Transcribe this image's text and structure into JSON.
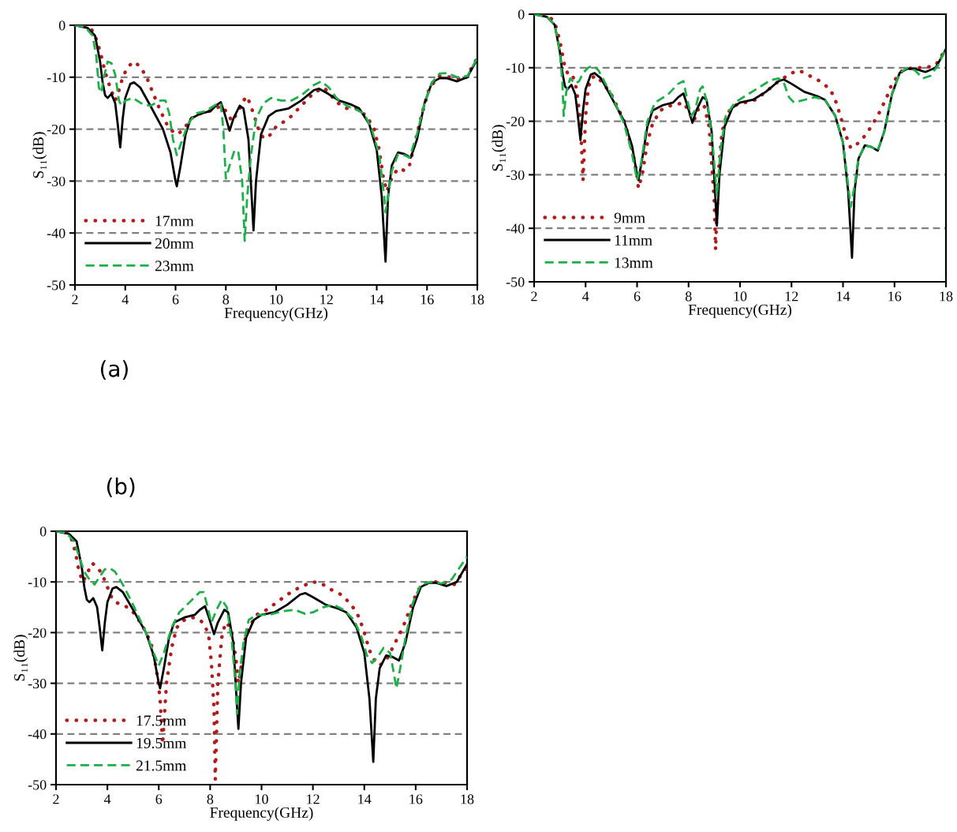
{
  "chart_data": [
    {
      "type": "line",
      "xlabel": "Frequency(GHz)",
      "ylabel": "S₁₁(dB)",
      "xlim": [
        2,
        18
      ],
      "ylim": [
        -50,
        0
      ],
      "xticks": [
        2,
        4,
        6,
        8,
        10,
        12,
        14,
        16,
        18
      ],
      "yticks": [
        -50,
        -40,
        -30,
        -20,
        -10,
        0
      ],
      "grid": "y",
      "legend": "bottom left",
      "annotations": [
        "(a)"
      ],
      "series": [
        {
          "name": "17mm",
          "color": "#b01c1c",
          "line_style": "dotted",
          "x": [
            2.0,
            2.6,
            2.8,
            3.0,
            3.2,
            3.4,
            3.6,
            3.75,
            3.9,
            4.1,
            4.35,
            4.6,
            4.85,
            5.1,
            5.4,
            5.7,
            5.9,
            6.1,
            6.4,
            6.6,
            7.0,
            7.5,
            7.8,
            8.0,
            8.25,
            8.5,
            8.7,
            8.85,
            9.1,
            9.3,
            9.5,
            9.8,
            10.0,
            10.5,
            11.0,
            11.5,
            11.9,
            12.1,
            12.4,
            12.8,
            13.2,
            13.6,
            13.9,
            14.1,
            14.25,
            14.4,
            14.55,
            14.7,
            14.9,
            15.1,
            15.3,
            15.5,
            15.8,
            16.1,
            16.5,
            17.0,
            17.5,
            18.0
          ],
          "values": [
            0,
            -0.3,
            -2,
            -5,
            -9,
            -12,
            -14.5,
            -12.5,
            -10,
            -8,
            -7,
            -8,
            -10,
            -13,
            -16.5,
            -19.5,
            -20.5,
            -21,
            -19.5,
            -18,
            -17,
            -16.3,
            -15.5,
            -16.5,
            -18.5,
            -16.5,
            -14.5,
            -13.7,
            -17,
            -20,
            -21.8,
            -21,
            -19.5,
            -18,
            -15.5,
            -13,
            -12,
            -13,
            -14.8,
            -16,
            -16,
            -17.5,
            -20,
            -24,
            -29,
            -32,
            -30,
            -28.5,
            -27.5,
            -28,
            -27,
            -23,
            -17,
            -12,
            -9.8,
            -10,
            -10.5,
            -6.3
          ]
        },
        {
          "name": "20mm",
          "color": "#000000",
          "line_style": "solid",
          "x": [
            2.0,
            2.5,
            2.8,
            3.0,
            3.1,
            3.2,
            3.3,
            3.45,
            3.6,
            3.7,
            3.8,
            3.9,
            4.0,
            4.2,
            4.35,
            4.6,
            5.0,
            5.5,
            5.8,
            6.0,
            6.05,
            6.2,
            6.4,
            6.6,
            7.0,
            7.4,
            7.6,
            7.8,
            7.95,
            8.15,
            8.3,
            8.55,
            8.7,
            8.9,
            9.05,
            9.1,
            9.2,
            9.4,
            9.7,
            10.0,
            10.5,
            11.0,
            11.5,
            11.7,
            12.0,
            12.5,
            13.0,
            13.3,
            13.7,
            14.0,
            14.2,
            14.35,
            14.45,
            14.6,
            14.85,
            15.1,
            15.35,
            15.6,
            15.9,
            16.2,
            16.5,
            16.8,
            17.2,
            17.6,
            18.0
          ],
          "values": [
            0,
            -0.5,
            -2,
            -7,
            -11,
            -13.5,
            -14,
            -13.2,
            -15,
            -19,
            -23.5,
            -18,
            -14,
            -11.3,
            -11,
            -12,
            -15.5,
            -20,
            -24.5,
            -30,
            -31,
            -27,
            -21,
            -18,
            -17,
            -16.5,
            -15.5,
            -14.8,
            -17,
            -20.3,
            -18,
            -15.5,
            -16,
            -22,
            -35,
            -39.5,
            -30,
            -21,
            -17.5,
            -16.5,
            -16,
            -14.5,
            -12.5,
            -12.2,
            -13,
            -14.5,
            -15.3,
            -16,
            -19,
            -24,
            -33,
            -45.5,
            -33,
            -27,
            -24.5,
            -24.8,
            -25.5,
            -22,
            -15,
            -11,
            -10.2,
            -10.2,
            -10.8,
            -10,
            -6.5
          ]
        },
        {
          "name": "23mm",
          "color": "#1fae4a",
          "line_style": "dashed",
          "x": [
            2.0,
            2.4,
            2.7,
            2.85,
            2.95,
            3.05,
            3.15,
            3.3,
            3.45,
            3.6,
            3.75,
            3.85,
            4.0,
            4.3,
            4.7,
            5.0,
            5.4,
            5.6,
            5.75,
            5.9,
            6.05,
            6.2,
            6.5,
            6.8,
            7.2,
            7.6,
            7.8,
            7.9,
            8.0,
            8.15,
            8.35,
            8.5,
            8.65,
            8.75,
            8.85,
            9.0,
            9.2,
            9.5,
            9.8,
            10.2,
            10.6,
            11.0,
            11.5,
            11.8,
            12.1,
            12.4,
            12.8,
            13.2,
            13.5,
            13.8,
            14.1,
            14.3,
            14.35,
            14.45,
            14.6,
            14.85,
            15.1,
            15.3,
            15.6,
            15.9,
            16.2,
            16.5,
            16.8,
            17.2,
            17.6,
            18.0
          ],
          "values": [
            0,
            -0.3,
            -2,
            -6,
            -12,
            -13,
            -10,
            -7,
            -7.3,
            -9.5,
            -14.5,
            -15.5,
            -14.5,
            -14,
            -15.2,
            -15.5,
            -14.5,
            -14.5,
            -17,
            -22,
            -25,
            -23,
            -19,
            -17,
            -16.5,
            -15.3,
            -15,
            -20,
            -29.5,
            -27,
            -24,
            -24.5,
            -30,
            -41.5,
            -33,
            -25,
            -18,
            -15,
            -14,
            -14.5,
            -14.5,
            -13.5,
            -11.5,
            -10.8,
            -12,
            -14,
            -15.5,
            -16.3,
            -17,
            -20,
            -25,
            -33,
            -36,
            -33,
            -28,
            -24.8,
            -25,
            -25.5,
            -21,
            -15,
            -11,
            -9.3,
            -9.2,
            -10,
            -9.8,
            -6.3
          ]
        }
      ]
    },
    {
      "type": "line",
      "xlabel": "Frequency(GHz)",
      "ylabel": "S₁₁(dB)",
      "xlim": [
        2,
        18
      ],
      "ylim": [
        -50,
        0
      ],
      "xticks": [
        2,
        4,
        6,
        8,
        10,
        12,
        14,
        16,
        18
      ],
      "yticks": [
        -50,
        -40,
        -30,
        -20,
        -10,
        0
      ],
      "grid": "y",
      "legend": "bottom left",
      "series": [
        {
          "name": "9mm",
          "color": "#b01c1c",
          "line_style": "dotted",
          "x": [
            2.0,
            2.5,
            2.8,
            3.0,
            3.2,
            3.35,
            3.5,
            3.65,
            3.8,
            3.9,
            4.0,
            4.1,
            4.2,
            4.4,
            4.7,
            5.0,
            5.5,
            5.8,
            6.0,
            6.05,
            6.2,
            6.4,
            6.6,
            6.9,
            7.2,
            7.6,
            7.8,
            8.0,
            8.2,
            8.4,
            8.6,
            8.8,
            9.0,
            9.05,
            9.15,
            9.3,
            9.5,
            9.8,
            10.2,
            10.6,
            11.0,
            11.5,
            12.0,
            12.3,
            12.7,
            13.1,
            13.5,
            13.7,
            13.9,
            14.1,
            14.3,
            14.5,
            14.8,
            15.1,
            15.4,
            15.7,
            15.9,
            16.3,
            16.7,
            17.2,
            17.6,
            18.0
          ],
          "values": [
            0,
            0,
            -1.5,
            -5,
            -10,
            -11.5,
            -11.5,
            -14,
            -20,
            -31,
            -19,
            -14,
            -12,
            -11.5,
            -13,
            -15,
            -20,
            -25,
            -30,
            -32.5,
            -30,
            -24,
            -20.5,
            -18,
            -17.2,
            -16.8,
            -16.5,
            -18,
            -20,
            -17.5,
            -17,
            -21,
            -35,
            -44,
            -30,
            -22,
            -18.5,
            -17,
            -16.5,
            -16,
            -14.5,
            -12.5,
            -11,
            -10.5,
            -11.5,
            -12.5,
            -14,
            -16,
            -19,
            -22.5,
            -25,
            -24.5,
            -23,
            -21,
            -18.5,
            -15.5,
            -13,
            -10.5,
            -10,
            -10,
            -9.5,
            -6.5
          ]
        },
        {
          "name": "11mm",
          "color": "#000000",
          "line_style": "solid",
          "x": [
            2.0,
            2.5,
            2.8,
            3.0,
            3.1,
            3.2,
            3.3,
            3.45,
            3.6,
            3.7,
            3.8,
            3.9,
            4.0,
            4.2,
            4.35,
            4.6,
            5.0,
            5.5,
            5.8,
            6.0,
            6.05,
            6.2,
            6.4,
            6.6,
            7.0,
            7.4,
            7.6,
            7.8,
            7.95,
            8.15,
            8.3,
            8.55,
            8.7,
            8.9,
            9.05,
            9.1,
            9.2,
            9.4,
            9.7,
            10.0,
            10.5,
            11.0,
            11.5,
            11.7,
            12.0,
            12.5,
            13.0,
            13.3,
            13.7,
            14.0,
            14.2,
            14.35,
            14.45,
            14.6,
            14.85,
            15.1,
            15.35,
            15.6,
            15.9,
            16.2,
            16.5,
            16.8,
            17.2,
            17.6,
            18.0
          ],
          "values": [
            0,
            -0.5,
            -2,
            -7,
            -11,
            -13.5,
            -14,
            -13.2,
            -15,
            -19,
            -23.5,
            -18,
            -14,
            -11.3,
            -11,
            -12,
            -15.5,
            -20,
            -24.5,
            -30,
            -31,
            -27,
            -21,
            -18,
            -17,
            -16.5,
            -15.5,
            -14.8,
            -17,
            -20.3,
            -18,
            -15.5,
            -16,
            -22,
            -35,
            -39.5,
            -30,
            -21,
            -17.5,
            -16.5,
            -16,
            -14.5,
            -12.5,
            -12.2,
            -13,
            -14.5,
            -15.3,
            -16,
            -19,
            -24,
            -33,
            -45.5,
            -33,
            -27,
            -24.5,
            -24.8,
            -25.5,
            -22,
            -15,
            -11,
            -10.2,
            -10.2,
            -10.8,
            -10,
            -6.5
          ]
        },
        {
          "name": "13mm",
          "color": "#1fae4a",
          "line_style": "dashed",
          "x": [
            2.0,
            2.5,
            2.8,
            3.0,
            3.1,
            3.15,
            3.25,
            3.4,
            3.6,
            3.75,
            3.9,
            4.1,
            4.3,
            4.5,
            5.0,
            5.5,
            5.8,
            6.0,
            6.15,
            6.4,
            6.7,
            7.2,
            7.6,
            7.8,
            7.95,
            8.1,
            8.25,
            8.45,
            8.55,
            8.75,
            8.95,
            9.1,
            9.25,
            9.45,
            9.8,
            10.3,
            10.8,
            11.2,
            11.5,
            11.7,
            11.9,
            12.1,
            12.5,
            12.9,
            13.3,
            13.7,
            14.0,
            14.2,
            14.3,
            14.45,
            14.6,
            14.85,
            15.1,
            15.35,
            15.6,
            15.9,
            16.2,
            16.5,
            16.8,
            17.1,
            17.4,
            17.7,
            18.0
          ],
          "values": [
            0,
            -0.5,
            -2,
            -7,
            -13,
            -19,
            -14.5,
            -12,
            -13,
            -12.5,
            -11,
            -10,
            -9.6,
            -10.5,
            -15,
            -20.5,
            -26,
            -31,
            -28,
            -20,
            -16.5,
            -15,
            -13,
            -12.5,
            -16,
            -19,
            -18,
            -14,
            -13.5,
            -17,
            -25,
            -34,
            -25,
            -19,
            -16.5,
            -15,
            -13.5,
            -12.3,
            -12,
            -12.8,
            -15.5,
            -16.5,
            -16,
            -15.5,
            -16,
            -19,
            -24,
            -32,
            -36,
            -32,
            -27,
            -24.5,
            -24.8,
            -25.5,
            -22,
            -15,
            -11,
            -10,
            -10.5,
            -12,
            -11.5,
            -9.5,
            -6.3
          ]
        }
      ]
    },
    {
      "type": "line",
      "xlabel": "Frequency(GHz)",
      "ylabel": "S₁₁(dB)",
      "xlim": [
        2,
        18
      ],
      "ylim": [
        -50,
        0
      ],
      "xticks": [
        2,
        4,
        6,
        8,
        10,
        12,
        14,
        16,
        18
      ],
      "yticks": [
        -50,
        -40,
        -30,
        -20,
        -10,
        0
      ],
      "grid": "y",
      "legend": "bottom left",
      "annotations": [
        "(b)"
      ],
      "series": [
        {
          "name": "17.5mm",
          "color": "#b01c1c",
          "line_style": "dotted",
          "x": [
            2.0,
            2.4,
            2.6,
            2.75,
            2.9,
            3.05,
            3.2,
            3.4,
            3.6,
            3.8,
            4.0,
            4.2,
            4.5,
            4.8,
            5.1,
            5.4,
            5.7,
            5.9,
            6.05,
            6.15,
            6.3,
            6.5,
            6.7,
            7.0,
            7.3,
            7.6,
            7.8,
            7.95,
            8.05,
            8.15,
            8.2,
            8.3,
            8.45,
            8.6,
            8.8,
            9.0,
            9.1,
            9.2,
            9.4,
            9.8,
            10.2,
            10.6,
            11.0,
            11.5,
            12.0,
            12.3,
            12.7,
            13.1,
            13.5,
            13.8,
            14.0,
            14.2,
            14.4,
            14.6,
            14.9,
            15.2,
            15.5,
            15.8,
            16.1,
            16.5,
            17.0,
            17.5,
            18.0
          ],
          "values": [
            0,
            -0.3,
            -1.5,
            -4,
            -8,
            -10,
            -8.5,
            -6.3,
            -7,
            -8.5,
            -11,
            -13.5,
            -14.5,
            -15,
            -16.5,
            -19,
            -22,
            -27,
            -33,
            -42,
            -30,
            -23,
            -19,
            -17.5,
            -17,
            -17.5,
            -18.5,
            -21,
            -26,
            -35,
            -49,
            -30,
            -21,
            -18,
            -19,
            -25,
            -30,
            -27,
            -20,
            -16.5,
            -15.5,
            -14,
            -12.5,
            -11,
            -10,
            -10.2,
            -11.5,
            -12.5,
            -14.5,
            -17,
            -20,
            -23.5,
            -25.5,
            -26.5,
            -25,
            -22,
            -19,
            -15,
            -11.5,
            -10,
            -10,
            -10.5,
            -7
          ]
        },
        {
          "name": "19.5mm",
          "color": "#000000",
          "line_style": "solid",
          "x": [
            2.0,
            2.5,
            2.8,
            3.0,
            3.1,
            3.2,
            3.3,
            3.45,
            3.6,
            3.7,
            3.8,
            3.9,
            4.0,
            4.2,
            4.35,
            4.6,
            5.0,
            5.5,
            5.8,
            6.0,
            6.05,
            6.2,
            6.4,
            6.6,
            7.0,
            7.4,
            7.6,
            7.8,
            7.95,
            8.15,
            8.3,
            8.55,
            8.7,
            8.9,
            9.05,
            9.1,
            9.2,
            9.4,
            9.7,
            10.0,
            10.5,
            11.0,
            11.5,
            11.7,
            12.0,
            12.5,
            13.0,
            13.3,
            13.7,
            14.0,
            14.2,
            14.35,
            14.45,
            14.6,
            14.85,
            15.1,
            15.35,
            15.6,
            15.9,
            16.2,
            16.5,
            16.8,
            17.2,
            17.6,
            18.0
          ],
          "values": [
            0,
            -0.5,
            -2,
            -7,
            -11,
            -13.5,
            -14,
            -13.2,
            -15,
            -19,
            -23.5,
            -18,
            -14,
            -11.3,
            -11,
            -12,
            -15.5,
            -20,
            -24.5,
            -30,
            -31,
            -27,
            -21,
            -18,
            -17,
            -16.5,
            -15.5,
            -14.8,
            -17,
            -20.3,
            -18,
            -15.5,
            -16,
            -22,
            -35,
            -39,
            -30,
            -21,
            -17.5,
            -16.5,
            -16,
            -14.5,
            -12.5,
            -12.2,
            -13,
            -14.5,
            -15.3,
            -16,
            -19,
            -24,
            -33,
            -45.5,
            -33,
            -27,
            -24.5,
            -24.8,
            -25.5,
            -22,
            -15,
            -11,
            -10.2,
            -10.2,
            -10.8,
            -10,
            -6.5
          ]
        },
        {
          "name": "21.5mm",
          "color": "#1fae4a",
          "line_style": "dashed",
          "x": [
            2.0,
            2.4,
            2.7,
            2.9,
            3.1,
            3.3,
            3.5,
            3.7,
            3.9,
            4.1,
            4.3,
            4.6,
            5.0,
            5.5,
            5.8,
            6.0,
            6.2,
            6.5,
            6.8,
            7.2,
            7.6,
            7.75,
            7.9,
            8.05,
            8.25,
            8.45,
            8.65,
            8.85,
            9.0,
            9.05,
            9.15,
            9.3,
            9.5,
            9.8,
            10.3,
            10.8,
            11.3,
            11.7,
            12.0,
            12.4,
            12.8,
            13.2,
            13.6,
            13.9,
            14.1,
            14.3,
            14.5,
            14.75,
            15.0,
            15.15,
            15.25,
            15.4,
            15.6,
            15.9,
            16.2,
            16.6,
            17.0,
            17.4,
            18.0
          ],
          "values": [
            0,
            -0.3,
            -2,
            -5,
            -8,
            -9.5,
            -10.5,
            -9,
            -7.5,
            -7.3,
            -8,
            -10.5,
            -14.5,
            -20,
            -24,
            -26.5,
            -24,
            -19,
            -16,
            -14,
            -12,
            -12,
            -15,
            -18,
            -15.5,
            -13.5,
            -15,
            -22,
            -31,
            -36,
            -28,
            -22,
            -17.5,
            -16.5,
            -16.5,
            -15.8,
            -15.5,
            -16.3,
            -16,
            -15,
            -14.5,
            -15.5,
            -17.5,
            -21,
            -24.5,
            -26,
            -25,
            -23,
            -24,
            -28,
            -31,
            -27,
            -21,
            -14,
            -10.5,
            -10,
            -10.3,
            -9.5,
            -5
          ]
        }
      ]
    }
  ]
}
